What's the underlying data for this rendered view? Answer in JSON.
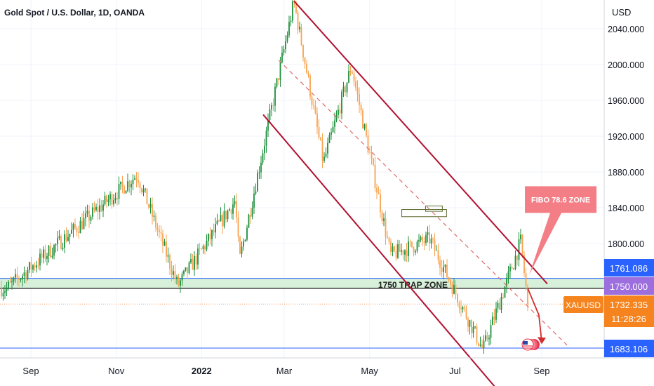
{
  "header": {
    "title": "Gold Spot / U.S. Dollar, 1D, OANDA"
  },
  "chart_data": {
    "type": "candlestick",
    "title": "Gold Spot / U.S. Dollar, 1D, OANDA",
    "symbol": "XAUUSD",
    "currency": "USD",
    "y_ticks": [
      2040,
      2000,
      1960,
      1920,
      1880,
      1840,
      1800
    ],
    "x_ticks": [
      "Sep",
      "Nov",
      "2022",
      "Mar",
      "May",
      "Jul",
      "Sep"
    ],
    "price_tags": {
      "upper_line": "1761.086",
      "trap_level": "1750.000",
      "last_price": "1732.335",
      "countdown": "11:28:26",
      "lower_line": "1683.106"
    },
    "trap_zone": {
      "label": "1750 TRAP ZONE",
      "low": 1750,
      "high": 1761.086
    },
    "callout": {
      "label": "FIBO 78.6 ZONE"
    },
    "colors": {
      "up": "#26a69a",
      "down": "#f7a350",
      "up_body": "#1b8f3a",
      "channel": "#b2102f",
      "zone_fill": "#d7f0da",
      "zone_edge": "#2962ff",
      "callout": "#f47e86",
      "last_price_tag": "#f5841f",
      "blue_tag": "#2962ff",
      "purple_tag": "#9c6ede"
    },
    "key_prices": [
      {
        "date": "2021-08",
        "price": 1750
      },
      {
        "date": "2021-11-16",
        "price": 1877
      },
      {
        "date": "2021-12-15",
        "price": 1753
      },
      {
        "date": "2022-01-25",
        "price": 1848
      },
      {
        "date": "2022-01-28",
        "price": 1780
      },
      {
        "date": "2022-03-08",
        "price": 2070
      },
      {
        "date": "2022-03-29",
        "price": 1890
      },
      {
        "date": "2022-04-18",
        "price": 1998
      },
      {
        "date": "2022-05-16",
        "price": 1787
      },
      {
        "date": "2022-06-13",
        "price": 1805
      },
      {
        "date": "2022-07-21",
        "price": 1681
      },
      {
        "date": "2022-08-17",
        "price": 1802
      },
      {
        "date": "2022-08-22",
        "price": 1732.335
      }
    ]
  }
}
